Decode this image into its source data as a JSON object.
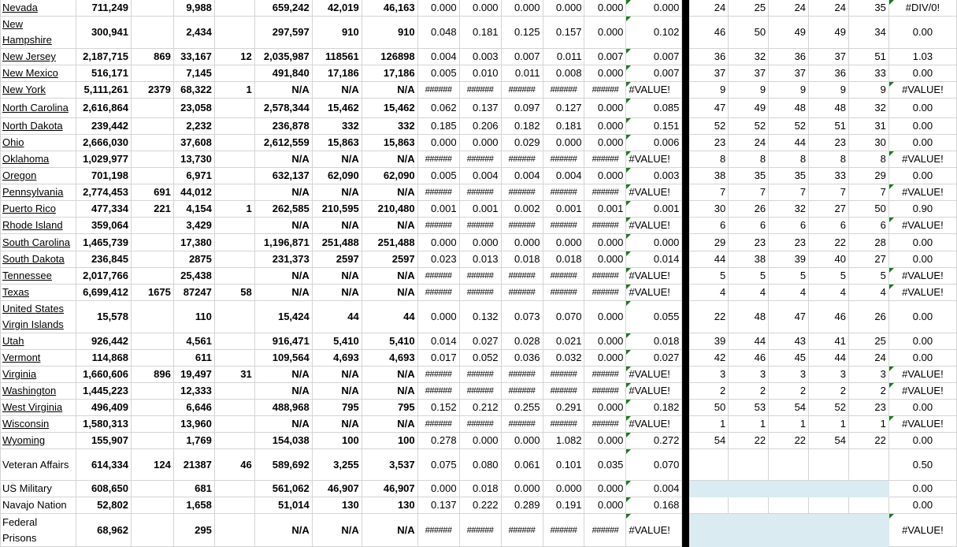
{
  "colors": {
    "error_indicator": "#1a7a1a",
    "highlight_fill": "#daebf2",
    "divider": "#000000"
  },
  "rows": [
    {
      "name": "Nevada",
      "link": true,
      "cells": [
        "711,249",
        "",
        "9,988",
        "",
        "659,242",
        "42,019",
        "46,163",
        "0.000",
        "0.000",
        "0.000",
        "0.000",
        "0.000",
        "0.000",
        "24",
        "25",
        "24",
        "24",
        "35",
        "#DIV/0!"
      ],
      "flagN": true,
      "flagT": true
    },
    {
      "name": "New Hampshire",
      "link": true,
      "cells": [
        "300,941",
        "",
        "2,434",
        "",
        "297,597",
        "910",
        "910",
        "0.048",
        "0.181",
        "0.125",
        "0.157",
        "0.000",
        "0.102",
        "46",
        "50",
        "49",
        "49",
        "34",
        "0.00"
      ],
      "flagN": true
    },
    {
      "name": "New Jersey",
      "link": true,
      "cells": [
        "2,187,715",
        "869",
        "33,167",
        "12",
        "2,035,987",
        "118561",
        "126898",
        "0.004",
        "0.003",
        "0.007",
        "0.011",
        "0.007",
        "0.007",
        "36",
        "32",
        "36",
        "37",
        "51",
        "1.03"
      ],
      "flagN": true
    },
    {
      "name": "New Mexico",
      "link": true,
      "cells": [
        "516,171",
        "",
        "7,145",
        "",
        "491,840",
        "17,186",
        "17,186",
        "0.005",
        "0.010",
        "0.011",
        "0.008",
        "0.000",
        "0.007",
        "37",
        "37",
        "37",
        "36",
        "33",
        "0.00"
      ],
      "flagN": true
    },
    {
      "name": "New York",
      "link": true,
      "cells": [
        "5,111,261",
        "2379",
        "68,322",
        "1",
        "N/A",
        "N/A",
        "N/A",
        "######",
        "######",
        "######",
        "######",
        "######",
        "#VALUE!",
        "9",
        "9",
        "9",
        "9",
        "9",
        "#VALUE!"
      ],
      "flagN": true,
      "flagT": true
    },
    {
      "name": "North Carolina",
      "link": true,
      "cells": [
        "2,616,864",
        "",
        "23,058",
        "",
        "2,578,344",
        "15,462",
        "15,462",
        "0.062",
        "0.137",
        "0.097",
        "0.127",
        "0.000",
        "0.085",
        "47",
        "49",
        "48",
        "48",
        "32",
        "0.00"
      ],
      "flagN": true
    },
    {
      "name": "North Dakota",
      "link": true,
      "cells": [
        "239,442",
        "",
        "2,232",
        "",
        "236,878",
        "332",
        "332",
        "0.185",
        "0.206",
        "0.182",
        "0.181",
        "0.000",
        "0.151",
        "52",
        "52",
        "52",
        "51",
        "31",
        "0.00"
      ],
      "flagN": true
    },
    {
      "name": "Ohio",
      "link": true,
      "cells": [
        "2,666,030",
        "",
        "37,608",
        "",
        "2,612,559",
        "15,863",
        "15,863",
        "0.000",
        "0.000",
        "0.029",
        "0.000",
        "0.000",
        "0.006",
        "23",
        "24",
        "44",
        "23",
        "30",
        "0.00"
      ],
      "flagN": true
    },
    {
      "name": "Oklahoma",
      "link": true,
      "cells": [
        "1,029,977",
        "",
        "13,730",
        "",
        "N/A",
        "N/A",
        "N/A",
        "######",
        "######",
        "######",
        "######",
        "######",
        "#VALUE!",
        "8",
        "8",
        "8",
        "8",
        "8",
        "#VALUE!"
      ],
      "flagN": true,
      "flagT": true
    },
    {
      "name": "Oregon",
      "link": true,
      "cells": [
        "701,198",
        "",
        "6,971",
        "",
        "632,137",
        "62,090",
        "62,090",
        "0.005",
        "0.004",
        "0.004",
        "0.004",
        "0.000",
        "0.003",
        "38",
        "35",
        "35",
        "33",
        "29",
        "0.00"
      ],
      "flagN": true
    },
    {
      "name": "Pennsylvania",
      "link": true,
      "cells": [
        "2,774,453",
        "691",
        "44,012",
        "",
        "N/A",
        "N/A",
        "N/A",
        "######",
        "######",
        "######",
        "######",
        "######",
        "#VALUE!",
        "7",
        "7",
        "7",
        "7",
        "7",
        "#VALUE!"
      ],
      "flagN": true,
      "flagT": true
    },
    {
      "name": "Puerto Rico",
      "link": true,
      "cells": [
        "477,334",
        "221",
        "4,154",
        "1",
        "262,585",
        "210,595",
        "210,480",
        "0.001",
        "0.001",
        "0.002",
        "0.001",
        "0.001",
        "0.001",
        "30",
        "26",
        "32",
        "27",
        "50",
        "0.90"
      ],
      "flagN": true
    },
    {
      "name": "Rhode Island",
      "link": true,
      "cells": [
        "359,064",
        "",
        "3,429",
        "",
        "N/A",
        "N/A",
        "N/A",
        "######",
        "######",
        "######",
        "######",
        "######",
        "#VALUE!",
        "6",
        "6",
        "6",
        "6",
        "6",
        "#VALUE!"
      ],
      "flagN": true,
      "flagT": true
    },
    {
      "name": "South Carolina",
      "link": true,
      "cells": [
        "1,465,739",
        "",
        "17,380",
        "",
        "1,196,871",
        "251,488",
        "251,488",
        "0.000",
        "0.000",
        "0.000",
        "0.000",
        "0.000",
        "0.000",
        "29",
        "23",
        "23",
        "22",
        "28",
        "0.00"
      ],
      "flagN": true
    },
    {
      "name": "South Dakota",
      "link": true,
      "cells": [
        "236,845",
        "",
        "2875",
        "",
        "231,373",
        "2597",
        "2597",
        "0.023",
        "0.013",
        "0.018",
        "0.018",
        "0.000",
        "0.014",
        "44",
        "38",
        "39",
        "40",
        "27",
        "0.00"
      ],
      "flagN": true
    },
    {
      "name": "Tennessee",
      "link": true,
      "cells": [
        "2,017,766",
        "",
        "25,438",
        "",
        "N/A",
        "N/A",
        "N/A",
        "######",
        "######",
        "######",
        "######",
        "######",
        "#VALUE!",
        "5",
        "5",
        "5",
        "5",
        "5",
        "#VALUE!"
      ],
      "flagN": true,
      "flagT": true
    },
    {
      "name": "Texas",
      "link": true,
      "cells": [
        "6,699,412",
        "1675",
        "87247",
        "58",
        "N/A",
        "N/A",
        "N/A",
        "######",
        "######",
        "######",
        "######",
        "######",
        "#VALUE!",
        "4",
        "4",
        "4",
        "4",
        "4",
        "#VALUE!"
      ],
      "flagN": true,
      "flagT": true
    },
    {
      "name": "United States Virgin Islands",
      "link": true,
      "cells": [
        "15,578",
        "",
        "110",
        "",
        "15,424",
        "44",
        "44",
        "0.000",
        "0.132",
        "0.073",
        "0.070",
        "0.000",
        "0.055",
        "22",
        "48",
        "47",
        "46",
        "26",
        "0.00"
      ],
      "flagN": true
    },
    {
      "name": "Utah",
      "link": true,
      "cells": [
        "926,442",
        "",
        "4,561",
        "",
        "916,471",
        "5,410",
        "5,410",
        "0.014",
        "0.027",
        "0.028",
        "0.021",
        "0.000",
        "0.018",
        "39",
        "44",
        "43",
        "41",
        "25",
        "0.00"
      ],
      "flagN": true
    },
    {
      "name": "Vermont",
      "link": true,
      "cells": [
        "114,868",
        "",
        "611",
        "",
        "109,564",
        "4,693",
        "4,693",
        "0.017",
        "0.052",
        "0.036",
        "0.032",
        "0.000",
        "0.027",
        "42",
        "46",
        "45",
        "44",
        "24",
        "0.00"
      ],
      "flagN": true
    },
    {
      "name": "Virginia",
      "link": true,
      "cells": [
        "1,660,606",
        "896",
        "19,497",
        "31",
        "N/A",
        "N/A",
        "N/A",
        "######",
        "######",
        "######",
        "######",
        "######",
        "#VALUE!",
        "3",
        "3",
        "3",
        "3",
        "3",
        "#VALUE!"
      ],
      "flagN": true,
      "flagT": true
    },
    {
      "name": "Washington",
      "link": true,
      "cells": [
        "1,445,223",
        "",
        "12,333",
        "",
        "N/A",
        "N/A",
        "N/A",
        "######",
        "######",
        "######",
        "######",
        "######",
        "#VALUE!",
        "2",
        "2",
        "2",
        "2",
        "2",
        "#VALUE!"
      ],
      "flagN": true,
      "flagT": true
    },
    {
      "name": "West Virginia",
      "link": true,
      "cells": [
        "496,409",
        "",
        "6,646",
        "",
        "488,968",
        "795",
        "795",
        "0.152",
        "0.212",
        "0.255",
        "0.291",
        "0.000",
        "0.182",
        "50",
        "53",
        "54",
        "52",
        "23",
        "0.00"
      ],
      "flagN": true
    },
    {
      "name": "Wisconsin",
      "link": true,
      "cells": [
        "1,580,313",
        "",
        "13,960",
        "",
        "N/A",
        "N/A",
        "N/A",
        "######",
        "######",
        "######",
        "######",
        "######",
        "#VALUE!",
        "1",
        "1",
        "1",
        "1",
        "1",
        "#VALUE!"
      ],
      "flagN": true,
      "flagT": true
    },
    {
      "name": "Wyoming",
      "link": true,
      "cells": [
        "155,907",
        "",
        "1,769",
        "",
        "154,038",
        "100",
        "100",
        "0.278",
        "0.000",
        "0.000",
        "1.082",
        "0.000",
        "0.272",
        "54",
        "22",
        "22",
        "54",
        "22",
        "0.00"
      ],
      "flagN": true
    },
    {
      "name": "Veteran Affairs",
      "link": false,
      "cells": [
        "614,334",
        "124",
        "21387",
        "46",
        "589,692",
        "3,255",
        "3,537",
        "0.075",
        "0.080",
        "0.061",
        "0.101",
        "0.035",
        "0.070",
        "",
        "",
        "",
        "",
        "",
        "0.50"
      ],
      "flagN": true
    },
    {
      "name": "US Military",
      "link": false,
      "cells": [
        "608,650",
        "",
        "681",
        "",
        "561,062",
        "46,907",
        "46,907",
        "0.000",
        "0.018",
        "0.000",
        "0.000",
        "0.000",
        "0.004",
        "",
        "",
        "",
        "",
        "",
        "0.00"
      ],
      "flagN": true,
      "highlight": true
    },
    {
      "name": "Navajo Nation",
      "link": false,
      "cells": [
        "52,802",
        "",
        "1,658",
        "",
        "51,014",
        "130",
        "130",
        "0.137",
        "0.222",
        "0.289",
        "0.191",
        "0.000",
        "0.168",
        "",
        "",
        "",
        "",
        "",
        "0.00"
      ],
      "flagN": true
    },
    {
      "name": "Federal Prisons",
      "link": false,
      "cells": [
        "68,962",
        "",
        "295",
        "",
        "N/A",
        "N/A",
        "N/A",
        "######",
        "######",
        "######",
        "######",
        "######",
        "#VALUE!",
        "",
        "",
        "",
        "",
        "",
        "#VALUE!"
      ],
      "flagN": true,
      "flagT": true,
      "highlight": true
    }
  ]
}
